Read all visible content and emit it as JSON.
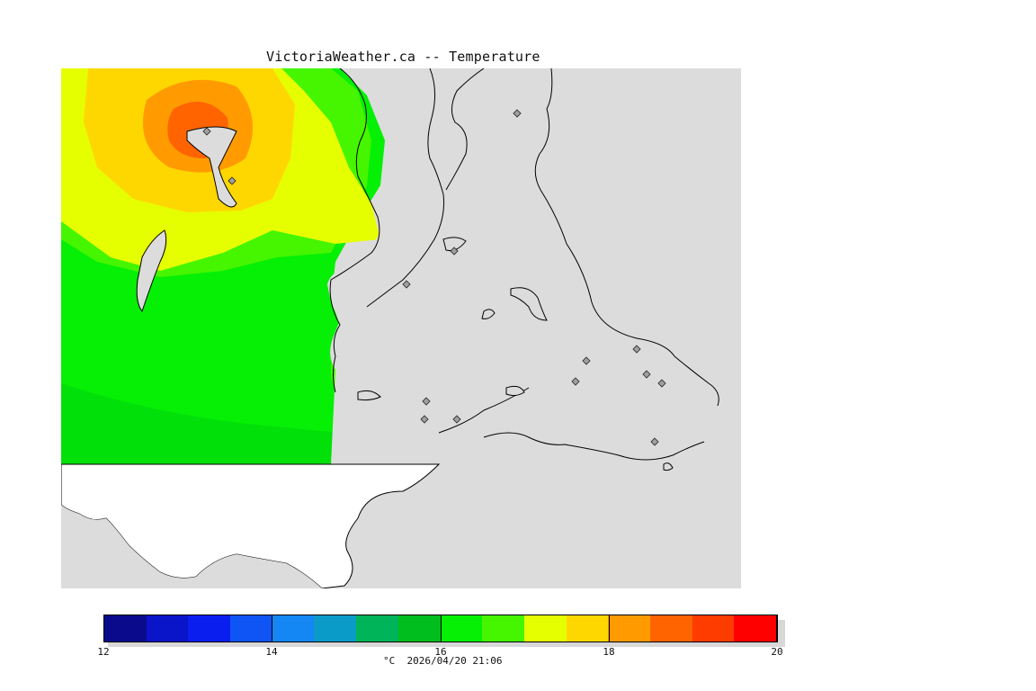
{
  "title": "VictoriaWeather.ca -- Temperature",
  "colorbar": {
    "colors": [
      "#0a0a8c",
      "#0a14c8",
      "#0a1ef0",
      "#0f55f5",
      "#1487f5",
      "#0a9bc8",
      "#00b45a",
      "#00be1e",
      "#05f005",
      "#46f500",
      "#e6ff00",
      "#ffd700",
      "#ff9b00",
      "#ff6400",
      "#ff3c00",
      "#ff0000"
    ],
    "min": 12,
    "max": 20,
    "ticks": [
      {
        "value": 12,
        "label": "12"
      },
      {
        "value": 14,
        "label": "14"
      },
      {
        "value": 16,
        "label": "16"
      },
      {
        "value": 18,
        "label": "18"
      },
      {
        "value": 20,
        "label": "20"
      }
    ],
    "units_timestamp": "°C  2026/04/20 21:06"
  },
  "map": {
    "land_no_data_color": "#ffffff",
    "water_color": "#dcdcdc",
    "station_count": 14
  }
}
